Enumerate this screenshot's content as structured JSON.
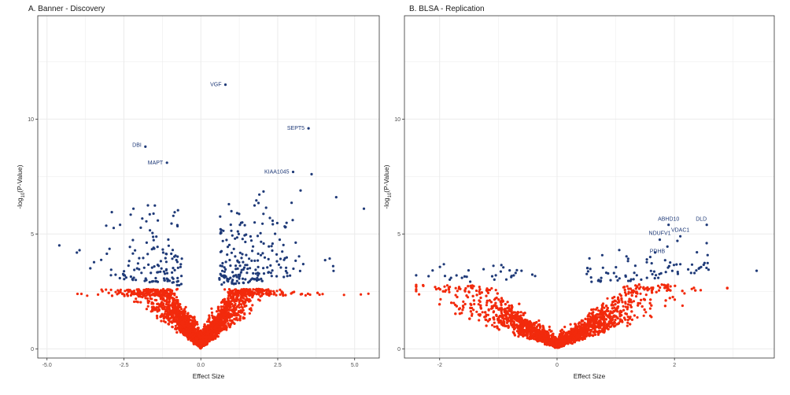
{
  "colors": {
    "significant": "#1f3a78",
    "nonsignificant": "#f22a0c",
    "grid": "#ebebeb"
  },
  "chart_data": [
    {
      "type": "scatter",
      "title": "A. Banner - Discovery",
      "xlabel": "Effect Size",
      "ylabel": {
        "prefix": "-log",
        "sub": "10",
        "suffix": "(P-Value)"
      },
      "xlim": [
        -5.3,
        5.8
      ],
      "ylim": [
        -0.4,
        14.5
      ],
      "xticks": [
        -5,
        -2.5,
        0,
        2.5,
        5
      ],
      "xtick_labels": [
        "-5.0",
        "-2.5",
        "0.0",
        "2.5",
        "5.0"
      ],
      "yticks": [
        0,
        5,
        10
      ],
      "ytick_labels": [
        "0",
        "5",
        "10"
      ],
      "grid": true,
      "legend": "none",
      "series": [
        {
          "points": [
            [
              0.8,
              11.5
            ],
            [
              3.5,
              9.6
            ],
            [
              -1.8,
              8.8
            ],
            [
              -1.1,
              8.1
            ],
            [
              3.0,
              7.7
            ],
            [
              5.3,
              6.1
            ],
            [
              -4.6,
              4.5
            ],
            [
              4.3,
              3.6
            ],
            [
              3.6,
              7.6
            ],
            [
              4.4,
              6.6
            ]
          ]
        },
        {
          "points": []
        }
      ],
      "annotations": [
        {
          "label": "VGF",
          "x": 0.8,
          "y": 11.5,
          "anchor": "end",
          "dx": -5,
          "dy": 2
        },
        {
          "label": "SEPT5",
          "x": 3.5,
          "y": 9.6,
          "anchor": "end",
          "dx": -5,
          "dy": 2
        },
        {
          "label": "DBI",
          "x": -1.8,
          "y": 8.8,
          "anchor": "end",
          "dx": -5,
          "dy": 0
        },
        {
          "label": "MAPT",
          "x": -1.1,
          "y": 8.1,
          "anchor": "end",
          "dx": -5,
          "dy": 2
        },
        {
          "label": "KIAA1045",
          "x": 3.0,
          "y": 7.7,
          "anchor": "end",
          "dx": -5,
          "dy": 2
        }
      ]
    },
    {
      "type": "scatter",
      "title": "B. BLSA - Replication",
      "xlabel": "Effect Size",
      "ylabel": {
        "prefix": "-log",
        "sub": "10",
        "suffix": "(P-Value)"
      },
      "xlim": [
        -2.6,
        3.7
      ],
      "ylim": [
        -0.4,
        14.5
      ],
      "xticks": [
        -2,
        0,
        2
      ],
      "xtick_labels": [
        "-2",
        "0",
        "2"
      ],
      "yticks": [
        0,
        5,
        10
      ],
      "ytick_labels": [
        "0",
        "5",
        "10"
      ],
      "grid": true,
      "legend": "none",
      "series": [
        {
          "points": [
            [
              2.55,
              5.4
            ],
            [
              1.9,
              5.4
            ],
            [
              2.1,
              4.9
            ],
            [
              1.75,
              4.75
            ],
            [
              1.88,
              4.45
            ],
            [
              2.05,
              4.7
            ],
            [
              3.4,
              3.4
            ],
            [
              -2.4,
              3.2
            ]
          ]
        },
        {
          "points": []
        }
      ],
      "annotations": [
        {
          "label": "ABHD10",
          "x": 1.9,
          "y": 5.4,
          "anchor": "middle",
          "dx": 0,
          "dy": -5
        },
        {
          "label": "DLD",
          "x": 2.55,
          "y": 5.4,
          "anchor": "end",
          "dx": 0,
          "dy": -5
        },
        {
          "label": "NDUFV1",
          "x": 1.75,
          "y": 4.75,
          "anchor": "middle",
          "dx": 0,
          "dy": -6
        },
        {
          "label": "VDAC1",
          "x": 2.1,
          "y": 4.9,
          "anchor": "middle",
          "dx": 0,
          "dy": -6
        },
        {
          "label": "PDHB",
          "x": 1.88,
          "y": 4.45,
          "anchor": "end",
          "dx": -3,
          "dy": 8
        }
      ]
    }
  ]
}
